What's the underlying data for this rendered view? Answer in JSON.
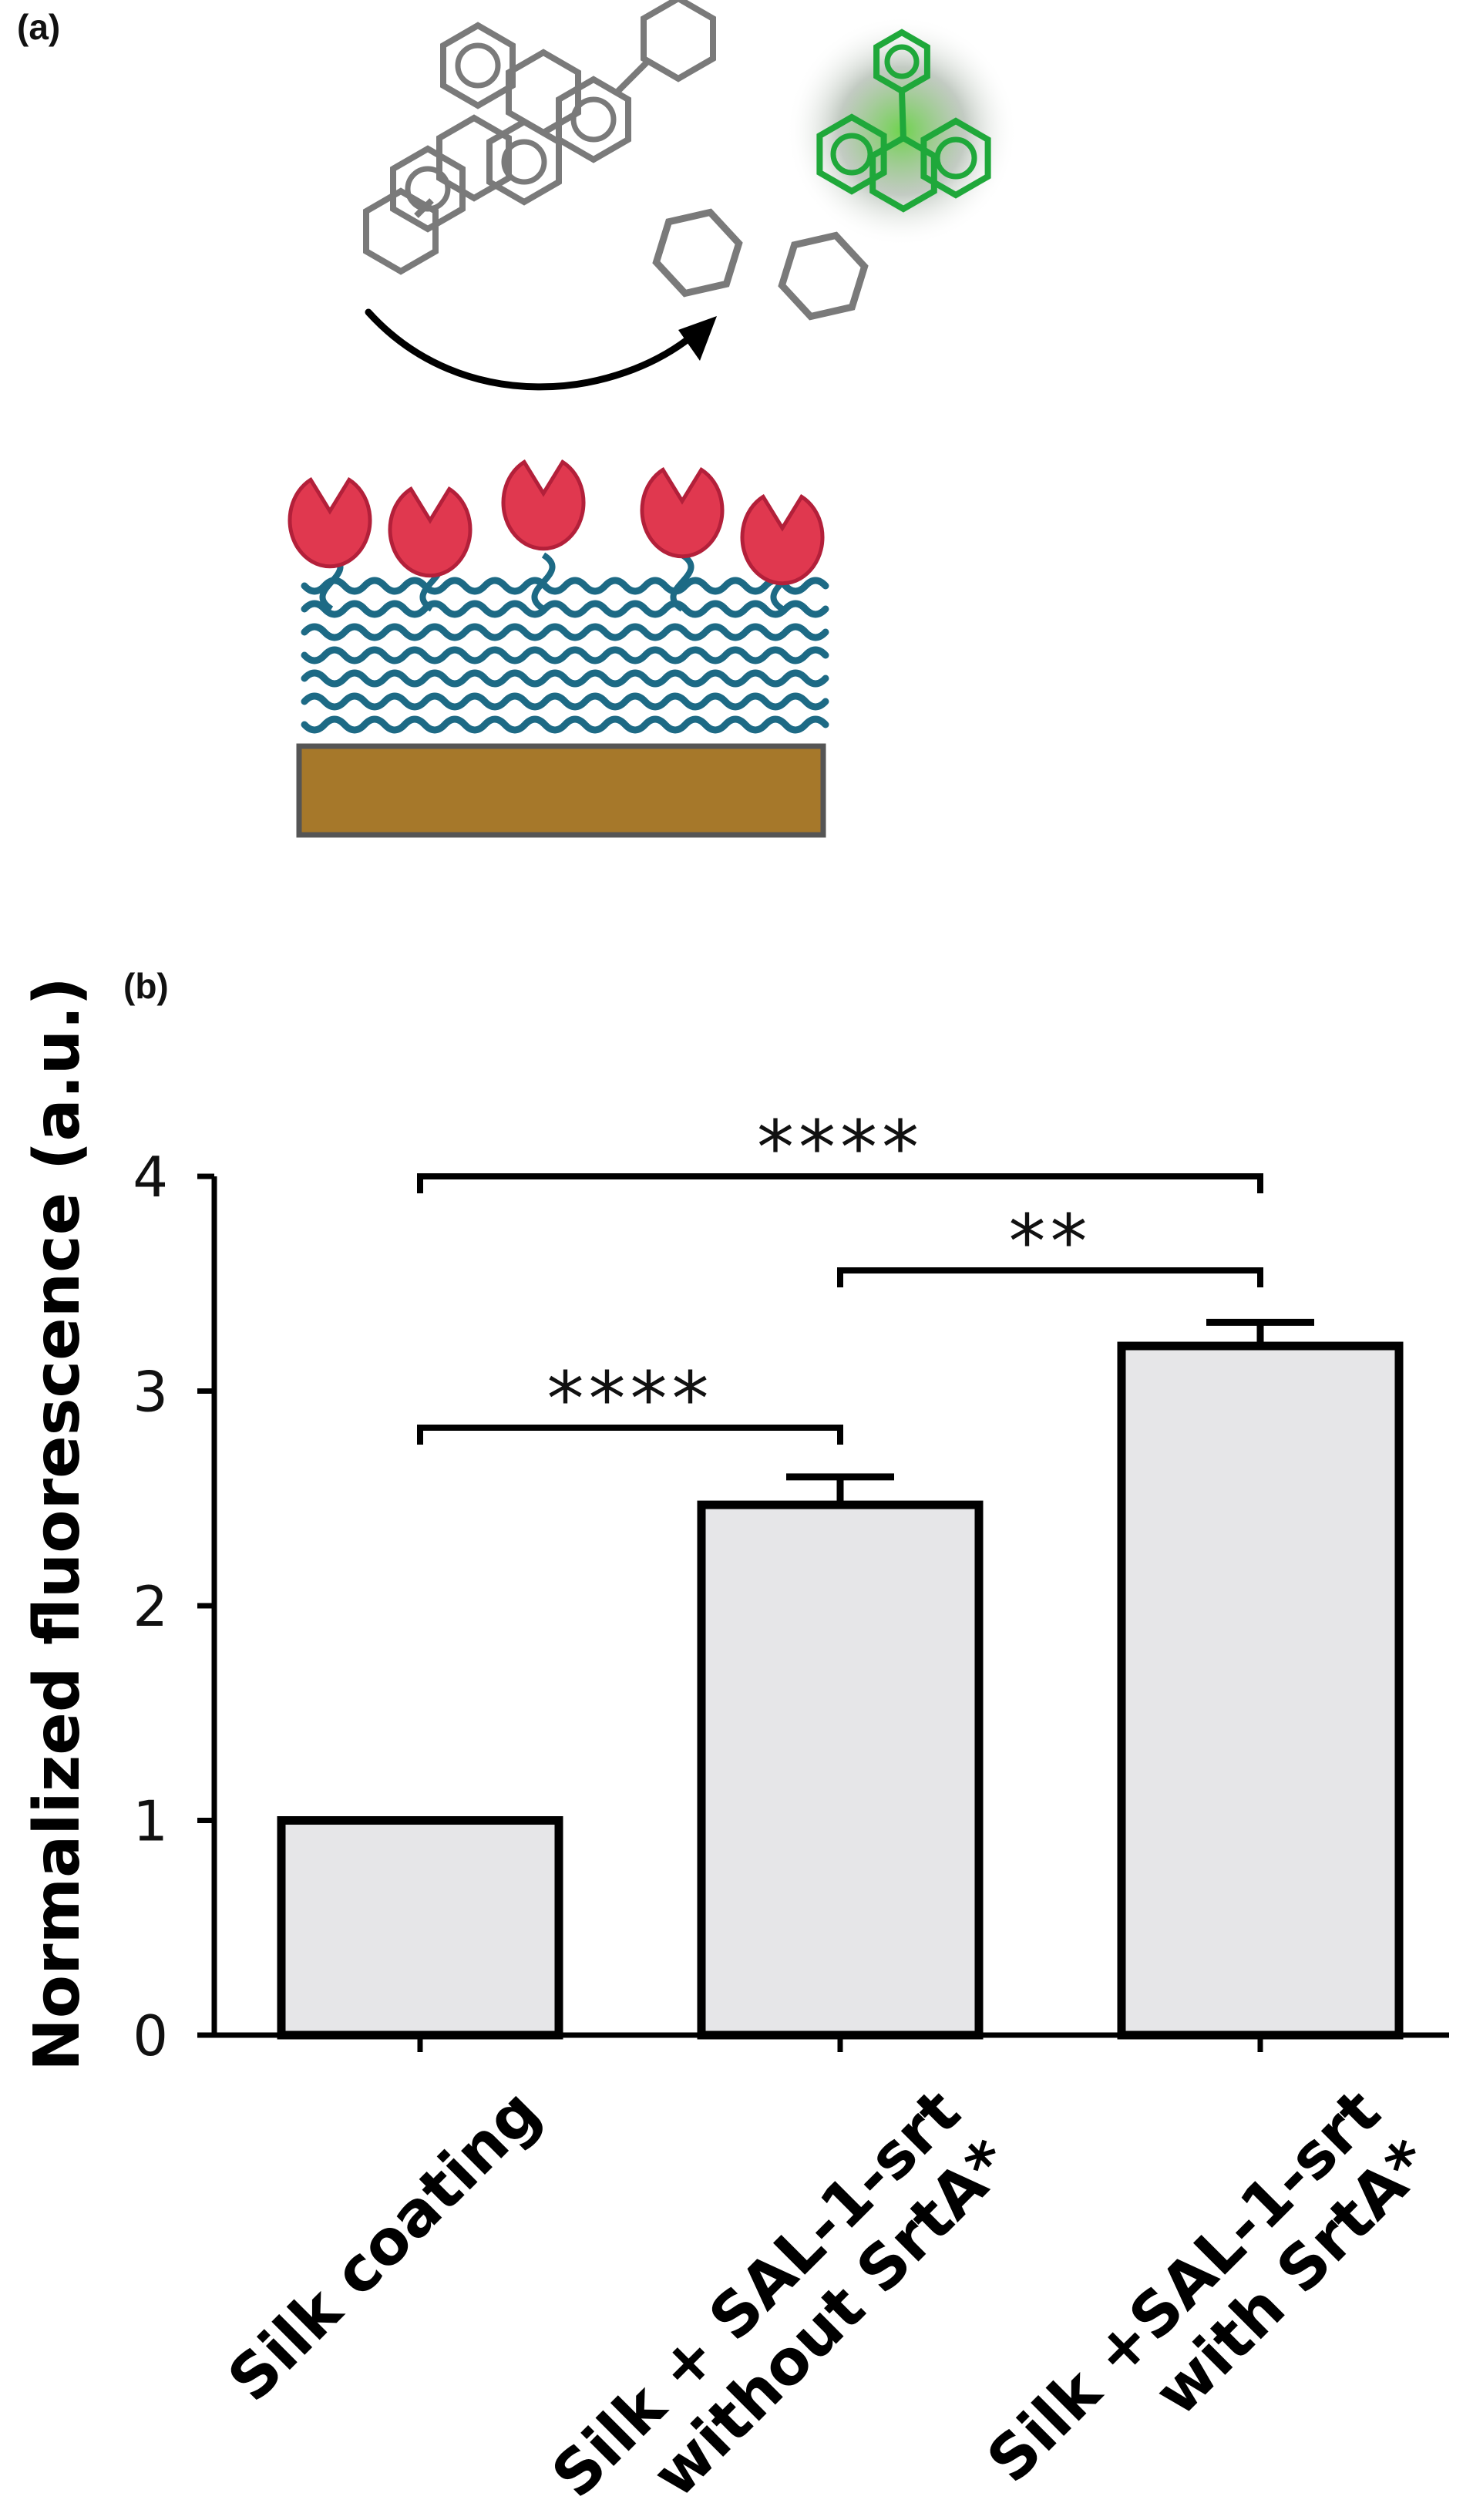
{
  "panels": {
    "a_label": "(a)",
    "b_label": "(b)"
  },
  "colors": {
    "hexagon_gray": "#7a7a7a",
    "fluorescent_green": "#1fa83a",
    "enzyme_red": "#e0384f",
    "silk_strand": "#1d6a85",
    "substrate_brown": "#a6782a",
    "bar_fill": "#e6e6e8"
  },
  "chart_data": {
    "type": "bar",
    "categories": [
      [
        "Silk coating"
      ],
      [
        "Silk + SAL-1-srt",
        "without SrtA*"
      ],
      [
        "Silk +SAL-1-srt",
        "with SrtA*"
      ]
    ],
    "values": [
      1.0,
      2.47,
      3.21
    ],
    "errors": [
      0.0,
      0.13,
      0.11
    ],
    "ylabel": "Normalized fluorescence (a.u.)",
    "ylim": [
      0,
      4
    ],
    "yticks": [
      "0",
      "1",
      "2",
      "3",
      "4"
    ],
    "significance": [
      {
        "from": 0,
        "to": 2,
        "label": "****"
      },
      {
        "from": 1,
        "to": 2,
        "label": "**"
      },
      {
        "from": 0,
        "to": 1,
        "label": "****"
      }
    ],
    "grid": false
  }
}
